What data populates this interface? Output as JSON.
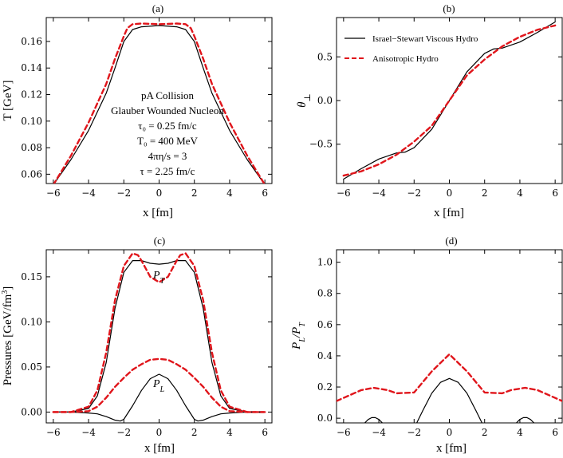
{
  "colors": {
    "viscous": "#000000",
    "aniso": "#e0151b"
  },
  "legend": {
    "viscous": "Israel−Stewart Viscous Hydro",
    "aniso": "Anisotropic Hydro"
  },
  "chart_data": [
    {
      "panel": "(a)",
      "type": "line",
      "xlabel": "x [fm]",
      "ylabel": "T [GeV]",
      "xlim": [
        -6.4,
        6.4
      ],
      "ylim": [
        0.053,
        0.178
      ],
      "xticks": [
        -6,
        -4,
        -2,
        0,
        2,
        4,
        6
      ],
      "yticks": [
        0.06,
        0.08,
        0.1,
        0.12,
        0.14,
        0.16
      ],
      "ytick_labels": [
        "0.06",
        "0.08",
        "0.10",
        "0.12",
        "0.14",
        "0.16"
      ],
      "annotations": [
        "pA Collision",
        "Glauber Wounded Nucleon",
        "τ₀ = 0.25 fm/c",
        "T₀ = 400 MeV",
        "4πη/s = 3",
        "τ = 2.25 fm/c"
      ],
      "series": [
        {
          "key": "viscous",
          "style": "solid",
          "x": [
            -6,
            -5,
            -4,
            -3,
            -2.5,
            -2,
            -1.5,
            -1,
            0,
            1,
            1.5,
            2,
            2.5,
            3,
            4,
            5,
            6
          ],
          "y": [
            0.052,
            0.071,
            0.093,
            0.121,
            0.14,
            0.16,
            0.169,
            0.171,
            0.172,
            0.171,
            0.169,
            0.16,
            0.14,
            0.121,
            0.093,
            0.071,
            0.052
          ]
        },
        {
          "key": "aniso",
          "style": "dashed",
          "x": [
            -6,
            -5,
            -4,
            -3,
            -2.5,
            -2,
            -1.8,
            -1.5,
            -1,
            0,
            1,
            1.5,
            1.8,
            2,
            2.5,
            3,
            4,
            5,
            6
          ],
          "y": [
            0.052,
            0.074,
            0.099,
            0.128,
            0.147,
            0.164,
            0.17,
            0.173,
            0.1735,
            0.173,
            0.1735,
            0.173,
            0.17,
            0.164,
            0.147,
            0.128,
            0.099,
            0.074,
            0.052
          ]
        }
      ]
    },
    {
      "panel": "(b)",
      "type": "line",
      "xlabel": "x [fm]",
      "ylabel": "θ⊥",
      "xlim": [
        -6.4,
        6.4
      ],
      "ylim": [
        -0.95,
        0.95
      ],
      "xticks": [
        -6,
        -4,
        -2,
        0,
        2,
        4,
        6
      ],
      "yticks": [
        -0.5,
        0.0,
        0.5
      ],
      "ytick_labels": [
        "−0.5",
        "0.0",
        "0.5"
      ],
      "legend_position": "top-left",
      "series": [
        {
          "key": "viscous",
          "style": "solid",
          "x": [
            -6,
            -5,
            -4,
            -3,
            -2.5,
            -2,
            -1,
            0,
            1,
            2,
            2.5,
            3,
            4,
            5,
            6
          ],
          "y": [
            -0.9,
            -0.78,
            -0.67,
            -0.6,
            -0.59,
            -0.54,
            -0.33,
            0.0,
            0.33,
            0.54,
            0.59,
            0.6,
            0.67,
            0.78,
            0.9
          ]
        },
        {
          "key": "aniso",
          "style": "dashed",
          "x": [
            -6,
            -5,
            -4,
            -3,
            -2,
            -1,
            0,
            1,
            2,
            3,
            4,
            5,
            6
          ],
          "y": [
            -0.86,
            -0.81,
            -0.73,
            -0.62,
            -0.47,
            -0.29,
            0.0,
            0.29,
            0.47,
            0.62,
            0.73,
            0.81,
            0.86
          ]
        }
      ]
    },
    {
      "panel": "(c)",
      "type": "line",
      "xlabel": "x [fm]",
      "ylabel": "Pressures [GeV/fm³]",
      "xlim": [
        -6.4,
        6.4
      ],
      "ylim": [
        -0.012,
        0.18
      ],
      "xticks": [
        -6,
        -4,
        -2,
        0,
        2,
        4,
        6
      ],
      "yticks": [
        0.0,
        0.05,
        0.1,
        0.15
      ],
      "ytick_labels": [
        "0.00",
        "0.05",
        "0.10",
        "0.15"
      ],
      "curve_labels": {
        "PT": "P",
        "PT_sub": "T",
        "PL": "P",
        "PL_sub": "L"
      },
      "series": [
        {
          "key": "viscous",
          "quantity": "PT",
          "style": "solid",
          "x": [
            -6,
            -5,
            -4,
            -3.5,
            -3,
            -2.5,
            -2,
            -1.5,
            -1,
            -0.5,
            0,
            0.5,
            1,
            1.5,
            2,
            2.5,
            3,
            3.5,
            4,
            5,
            6
          ],
          "y": [
            0.0,
            0.0,
            0.004,
            0.018,
            0.055,
            0.115,
            0.155,
            0.168,
            0.168,
            0.165,
            0.164,
            0.165,
            0.168,
            0.168,
            0.155,
            0.115,
            0.055,
            0.018,
            0.004,
            0.0,
            0.0
          ]
        },
        {
          "key": "aniso",
          "quantity": "PT",
          "style": "dashed",
          "x": [
            -6,
            -5,
            -4,
            -3.5,
            -3,
            -2.5,
            -2,
            -1.5,
            -1.2,
            -1,
            -0.5,
            0,
            0.5,
            1,
            1.2,
            1.5,
            2,
            2.5,
            3,
            3.5,
            4,
            5,
            6
          ],
          "y": [
            0.0,
            0.0,
            0.006,
            0.024,
            0.066,
            0.124,
            0.162,
            0.176,
            0.174,
            0.168,
            0.15,
            0.144,
            0.15,
            0.168,
            0.174,
            0.176,
            0.162,
            0.124,
            0.066,
            0.024,
            0.006,
            0.0,
            0.0
          ]
        },
        {
          "key": "viscous",
          "quantity": "PL",
          "style": "solid",
          "x": [
            -6,
            -5,
            -4,
            -3.5,
            -3,
            -2.5,
            -2.2,
            -2,
            -1.5,
            -1,
            -0.5,
            0,
            0.5,
            1,
            1.5,
            2,
            2.2,
            2.5,
            3,
            3.5,
            4,
            5,
            6
          ],
          "y": [
            0.0,
            0.0,
            -0.001,
            -0.002,
            -0.005,
            -0.009,
            -0.01,
            -0.008,
            0.007,
            0.024,
            0.037,
            0.042,
            0.037,
            0.024,
            0.007,
            -0.008,
            -0.01,
            -0.009,
            -0.005,
            -0.002,
            -0.001,
            0.0,
            0.0
          ]
        },
        {
          "key": "aniso",
          "quantity": "PL",
          "style": "dashed",
          "x": [
            -6,
            -5,
            -4,
            -3.5,
            -3,
            -2.5,
            -2,
            -1.5,
            -1,
            -0.5,
            0,
            0.5,
            1,
            1.5,
            2,
            2.5,
            3,
            3.5,
            4,
            5,
            6
          ],
          "y": [
            0.0,
            0.0,
            0.001,
            0.006,
            0.016,
            0.028,
            0.038,
            0.047,
            0.053,
            0.058,
            0.059,
            0.058,
            0.053,
            0.047,
            0.038,
            0.028,
            0.016,
            0.006,
            0.001,
            0.0,
            0.0
          ]
        }
      ]
    },
    {
      "panel": "(d)",
      "type": "line",
      "xlabel": "x [fm]",
      "ylabel": "P_L/P_T",
      "xlim": [
        -6.4,
        6.4
      ],
      "ylim": [
        -0.03,
        1.08
      ],
      "xticks": [
        -6,
        -4,
        -2,
        0,
        2,
        4,
        6
      ],
      "yticks": [
        0.0,
        0.2,
        0.4,
        0.6,
        0.8,
        1.0
      ],
      "ytick_labels": [
        "0.0",
        "0.2",
        "0.4",
        "0.6",
        "0.8",
        "1.0"
      ],
      "series": [
        {
          "key": "viscous",
          "style": "solid",
          "segments": [
            {
              "x": [
                -4.8,
                -4.6,
                -4.4,
                -4.2,
                -4.0,
                -3.8
              ],
              "y": [
                -0.03,
                -0.008,
                0.004,
                0.004,
                -0.008,
                -0.03
              ]
            },
            {
              "x": [
                -1.85,
                -1.5,
                -1,
                -0.5,
                0,
                0.5,
                1,
                1.5,
                1.85
              ],
              "y": [
                -0.03,
                0.05,
                0.16,
                0.23,
                0.255,
                0.23,
                0.16,
                0.05,
                -0.03
              ]
            },
            {
              "x": [
                3.8,
                4.0,
                4.2,
                4.4,
                4.6,
                4.8
              ],
              "y": [
                -0.03,
                -0.008,
                0.004,
                0.004,
                -0.008,
                -0.03
              ]
            }
          ]
        },
        {
          "key": "aniso",
          "style": "dashed",
          "x": [
            -6.4,
            -6,
            -5,
            -4.3,
            -3.5,
            -3,
            -2,
            -1,
            0,
            1,
            2,
            3,
            3.5,
            4.3,
            5,
            6,
            6.4
          ],
          "y": [
            0.11,
            0.13,
            0.18,
            0.195,
            0.18,
            0.16,
            0.165,
            0.3,
            0.41,
            0.3,
            0.165,
            0.16,
            0.18,
            0.195,
            0.18,
            0.13,
            0.11
          ]
        }
      ]
    }
  ]
}
